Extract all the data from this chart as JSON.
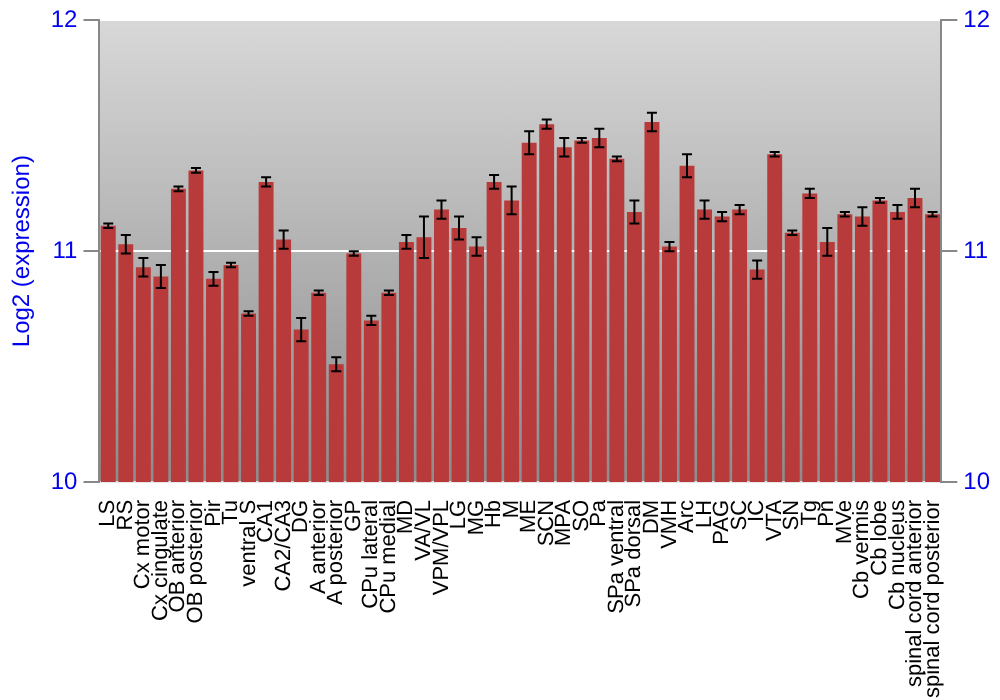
{
  "chart_data": {
    "type": "bar",
    "ylabel": "Log2 (expression)",
    "categories": [
      "LS",
      "RS",
      "Cx motor",
      "Cx cingulate",
      "OB anterior",
      "OB posterior",
      "Pir",
      "Tu",
      "ventral S",
      "CA1",
      "CA2/CA3",
      "DG",
      "A anterior",
      "A posterior",
      "GP",
      "CPu lateral",
      "CPu medial",
      "MD",
      "VA/VL",
      "VPM/VPL",
      "LG",
      "MG",
      "Hb",
      "M",
      "ME",
      "SCN",
      "MPA",
      "SO",
      "Pa",
      "SPa ventral",
      "SPa dorsal",
      "DM",
      "VMH",
      "Arc",
      "LH",
      "PAG",
      "SC",
      "IC",
      "VTA",
      "SN",
      "Tg",
      "Pn",
      "MVe",
      "Cb vermis",
      "Cb lobe",
      "Cb nucleus",
      "spinal cord anterior",
      "spinal cord posterior"
    ],
    "values": [
      11.11,
      11.03,
      10.93,
      10.89,
      11.27,
      11.35,
      10.88,
      10.94,
      10.73,
      11.3,
      11.05,
      10.66,
      10.82,
      10.51,
      10.99,
      10.7,
      10.82,
      11.04,
      11.06,
      11.18,
      11.1,
      11.02,
      11.3,
      11.22,
      11.47,
      11.55,
      11.45,
      11.48,
      11.49,
      11.4,
      11.17,
      11.56,
      11.02,
      11.37,
      11.18,
      11.15,
      11.18,
      10.92,
      11.42,
      11.08,
      11.25,
      11.04,
      11.16,
      11.15,
      11.22,
      11.17,
      11.23,
      11.16
    ],
    "errors": [
      0.01,
      0.04,
      0.04,
      0.05,
      0.01,
      0.01,
      0.03,
      0.01,
      0.01,
      0.02,
      0.04,
      0.05,
      0.01,
      0.03,
      0.01,
      0.02,
      0.01,
      0.03,
      0.09,
      0.04,
      0.05,
      0.04,
      0.03,
      0.06,
      0.05,
      0.02,
      0.04,
      0.01,
      0.04,
      0.01,
      0.05,
      0.04,
      0.02,
      0.05,
      0.04,
      0.02,
      0.02,
      0.04,
      0.01,
      0.01,
      0.02,
      0.06,
      0.01,
      0.04,
      0.01,
      0.03,
      0.04,
      0.01
    ],
    "color": "#b83a3a",
    "ylim": [
      10,
      12
    ],
    "yticks": [
      10,
      11,
      12
    ],
    "y2lim": [
      10,
      12
    ],
    "y2ticks": [
      10,
      11,
      12
    ],
    "grid": "y",
    "legend": false
  }
}
